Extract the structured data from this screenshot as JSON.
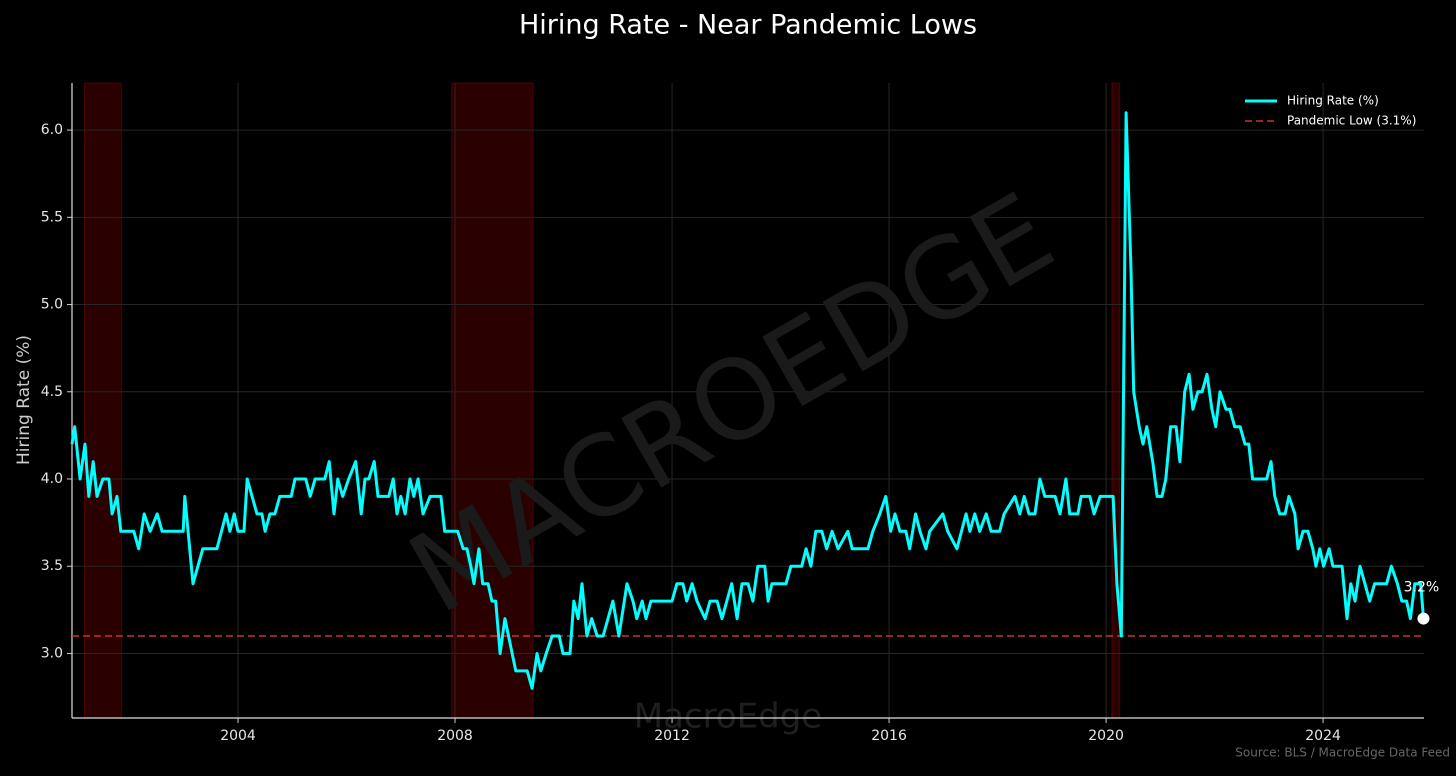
{
  "chart_data": {
    "type": "line",
    "title": "Hiring Rate - Near Pandemic Lows",
    "ylabel": "Hiring Rate (%)",
    "source": "Source: BLS / MacroEdge Data Feed",
    "watermarks": [
      "MACROEDGE",
      "MacroEdge"
    ],
    "xlim": [
      2000.94,
      2025.86
    ],
    "xticks": [
      2004,
      2008,
      2012,
      2016,
      2020,
      2024
    ],
    "ylim": [
      2.63,
      6.27
    ],
    "yticks": [
      {
        "value": 3,
        "label": "3.0"
      },
      3.5,
      {
        "value": 4,
        "label": "4.0"
      },
      4.5,
      {
        "value": 5,
        "label": "5.0"
      },
      5.5,
      {
        "value": 6,
        "label": "6.0"
      }
    ],
    "grid": true,
    "legend": "upper right",
    "shaded_periods": [
      [
        2001.17,
        2001.85
      ],
      [
        2007.94,
        2009.44
      ],
      [
        2020.11,
        2020.25
      ]
    ],
    "shade_color": "#8b0000",
    "hlines": [
      {
        "name": "Pandemic Low (3.1%)",
        "value": 3.1,
        "color": "#c0392b",
        "style": "dashed"
      }
    ],
    "end_label": "3.2%",
    "x": [
      2000.94,
      2000.99,
      2001.09,
      2001.18,
      2001.25,
      2001.33,
      2001.4,
      2001.51,
      2001.62,
      2001.68,
      2001.77,
      2001.84,
      2002.08,
      2002.17,
      2002.27,
      2002.38,
      2002.51,
      2002.6,
      2002.99,
      2003.02,
      2003.17,
      2003.35,
      2003.61,
      2003.78,
      2003.85,
      2003.93,
      2004.0,
      2004.11,
      2004.17,
      2004.35,
      2004.44,
      2004.5,
      2004.59,
      2004.68,
      2004.77,
      2004.98,
      2005.05,
      2005.25,
      2005.33,
      2005.42,
      2005.6,
      2005.68,
      2005.77,
      2005.84,
      2005.93,
      2006.04,
      2006.17,
      2006.27,
      2006.34,
      2006.41,
      2006.51,
      2006.58,
      2006.78,
      2006.86,
      2006.93,
      2007.0,
      2007.08,
      2007.17,
      2007.24,
      2007.32,
      2007.41,
      2007.54,
      2007.74,
      2007.81,
      2008.05,
      2008.15,
      2008.22,
      2008.29,
      2008.35,
      2008.44,
      2008.51,
      2008.61,
      2008.68,
      2008.75,
      2008.83,
      2008.92,
      2009.12,
      2009.33,
      2009.42,
      2009.51,
      2009.58,
      2009.68,
      2009.79,
      2009.92,
      2009.99,
      2010.12,
      2010.19,
      2010.27,
      2010.34,
      2010.43,
      2010.52,
      2010.62,
      2010.73,
      2010.82,
      2010.91,
      2011.02,
      2011.17,
      2011.28,
      2011.35,
      2011.45,
      2011.52,
      2011.61,
      2012.0,
      2012.09,
      2012.2,
      2012.27,
      2012.37,
      2012.46,
      2012.61,
      2012.7,
      2012.83,
      2012.92,
      2013.01,
      2013.1,
      2013.2,
      2013.29,
      2013.4,
      2013.49,
      2013.58,
      2013.71,
      2013.77,
      2013.84,
      2014.1,
      2014.19,
      2014.39,
      2014.47,
      2014.56,
      2014.65,
      2014.76,
      2014.85,
      2014.95,
      2015.06,
      2015.24,
      2015.32,
      2015.61,
      2015.7,
      2015.83,
      2015.94,
      2016.03,
      2016.11,
      2016.2,
      2016.31,
      2016.38,
      2016.49,
      2016.57,
      2016.68,
      2016.75,
      2016.99,
      2017.08,
      2017.25,
      2017.42,
      2017.49,
      2017.58,
      2017.67,
      2017.79,
      2017.88,
      2018.04,
      2018.12,
      2018.32,
      2018.41,
      2018.49,
      2018.58,
      2018.69,
      2018.78,
      2018.87,
      2019.06,
      2019.15,
      2019.26,
      2019.33,
      2019.48,
      2019.54,
      2019.7,
      2019.78,
      2019.89,
      2020.13,
      2020.2,
      2020.28,
      2020.37,
      2020.46,
      2020.51,
      2020.61,
      2020.68,
      2020.75,
      2020.86,
      2020.94,
      2021.03,
      2021.1,
      2021.19,
      2021.29,
      2021.36,
      2021.45,
      2021.53,
      2021.6,
      2021.69,
      2021.77,
      2021.86,
      2021.95,
      2022.02,
      2022.1,
      2022.21,
      2022.28,
      2022.37,
      2022.47,
      2022.56,
      2022.63,
      2022.7,
      2022.96,
      2023.04,
      2023.11,
      2023.2,
      2023.3,
      2023.37,
      2023.48,
      2023.54,
      2023.63,
      2023.72,
      2023.81,
      2023.87,
      2023.94,
      2024.01,
      2024.11,
      2024.18,
      2024.35,
      2024.44,
      2024.51,
      2024.59,
      2024.68,
      2024.77,
      2024.86,
      2024.95,
      2025.17,
      2025.26,
      2025.37,
      2025.45,
      2025.54,
      2025.61,
      2025.69,
      2025.8,
      2025.85
    ],
    "series": [
      {
        "name": "Hiring Rate (%)",
        "color": "#00ffff",
        "values": [
          4.2,
          4.3,
          4.0,
          4.2,
          3.9,
          4.1,
          3.9,
          4.0,
          4.0,
          3.8,
          3.9,
          3.7,
          3.7,
          3.6,
          3.8,
          3.7,
          3.8,
          3.7,
          3.7,
          3.9,
          3.4,
          3.6,
          3.6,
          3.8,
          3.7,
          3.8,
          3.7,
          3.7,
          4.0,
          3.8,
          3.8,
          3.7,
          3.8,
          3.8,
          3.9,
          3.9,
          4.0,
          4.0,
          3.9,
          4.0,
          4.0,
          4.1,
          3.8,
          4.0,
          3.9,
          4.0,
          4.1,
          3.8,
          4.0,
          4.0,
          4.1,
          3.9,
          3.9,
          4.0,
          3.8,
          3.9,
          3.8,
          4.0,
          3.9,
          4.0,
          3.8,
          3.9,
          3.9,
          3.7,
          3.7,
          3.6,
          3.6,
          3.5,
          3.4,
          3.6,
          3.4,
          3.4,
          3.3,
          3.3,
          3.0,
          3.2,
          2.9,
          2.9,
          2.8,
          3.0,
          2.9,
          3.0,
          3.1,
          3.1,
          3.0,
          3.0,
          3.3,
          3.2,
          3.4,
          3.1,
          3.2,
          3.1,
          3.1,
          3.2,
          3.3,
          3.1,
          3.4,
          3.3,
          3.2,
          3.3,
          3.2,
          3.3,
          3.3,
          3.4,
          3.4,
          3.3,
          3.4,
          3.3,
          3.2,
          3.3,
          3.3,
          3.2,
          3.3,
          3.4,
          3.2,
          3.4,
          3.4,
          3.3,
          3.5,
          3.5,
          3.3,
          3.4,
          3.4,
          3.5,
          3.5,
          3.6,
          3.5,
          3.7,
          3.7,
          3.6,
          3.7,
          3.6,
          3.7,
          3.6,
          3.6,
          3.7,
          3.8,
          3.9,
          3.7,
          3.8,
          3.7,
          3.7,
          3.6,
          3.8,
          3.7,
          3.6,
          3.7,
          3.8,
          3.7,
          3.6,
          3.8,
          3.7,
          3.8,
          3.7,
          3.8,
          3.7,
          3.7,
          3.8,
          3.9,
          3.8,
          3.9,
          3.8,
          3.8,
          4.0,
          3.9,
          3.9,
          3.8,
          4.0,
          3.8,
          3.8,
          3.9,
          3.9,
          3.8,
          3.9,
          3.9,
          3.4,
          3.1,
          6.1,
          5.2,
          4.5,
          4.3,
          4.2,
          4.3,
          4.1,
          3.9,
          3.9,
          4.0,
          4.3,
          4.3,
          4.1,
          4.5,
          4.6,
          4.4,
          4.5,
          4.5,
          4.6,
          4.4,
          4.3,
          4.5,
          4.4,
          4.4,
          4.3,
          4.3,
          4.2,
          4.2,
          4.0,
          4.0,
          4.1,
          3.9,
          3.8,
          3.8,
          3.9,
          3.8,
          3.6,
          3.7,
          3.7,
          3.6,
          3.5,
          3.6,
          3.5,
          3.6,
          3.5,
          3.5,
          3.2,
          3.4,
          3.3,
          3.5,
          3.4,
          3.3,
          3.4,
          3.4,
          3.5,
          3.4,
          3.3,
          3.3,
          3.2,
          3.4,
          3.4,
          3.2
        ]
      }
    ]
  }
}
